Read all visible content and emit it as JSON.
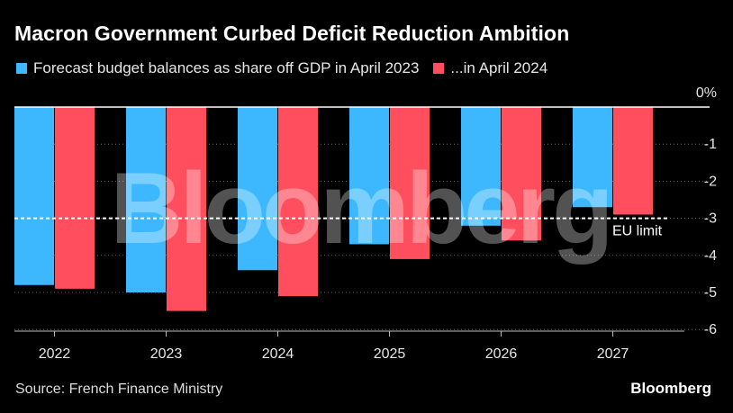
{
  "title": "Macron Government Curbed Deficit Reduction Ambition",
  "legend": [
    {
      "label": "Forecast budget balances as share off GDP in April 2023",
      "color": "#3db8ff"
    },
    {
      "label": "...in April 2024",
      "color": "#ff4f5e"
    }
  ],
  "source": "Source: French Finance Ministry",
  "brand": "Bloomberg",
  "watermark": "Bloomberg",
  "chart_data": {
    "type": "bar",
    "categories": [
      "2022",
      "2023",
      "2024",
      "2025",
      "2026",
      "2027"
    ],
    "series": [
      {
        "name": "Forecast budget balances as share off GDP in April 2023",
        "color": "#3db8ff",
        "values": [
          -4.8,
          -5.0,
          -4.4,
          -3.7,
          -3.2,
          -2.7
        ]
      },
      {
        "name": "...in April 2024",
        "color": "#ff4f5e",
        "values": [
          -4.9,
          -5.5,
          -5.1,
          -4.1,
          -3.6,
          -2.9
        ]
      }
    ],
    "yticks": [
      0,
      -1,
      -2,
      -3,
      -4,
      -5,
      -6
    ],
    "ytick_labels": [
      "0%",
      "-1",
      "-2",
      "-3",
      "-4",
      "-5",
      "-6"
    ],
    "ylim": [
      -6.3,
      0
    ],
    "reference_line": {
      "value": -3,
      "label": "EU limit"
    }
  }
}
